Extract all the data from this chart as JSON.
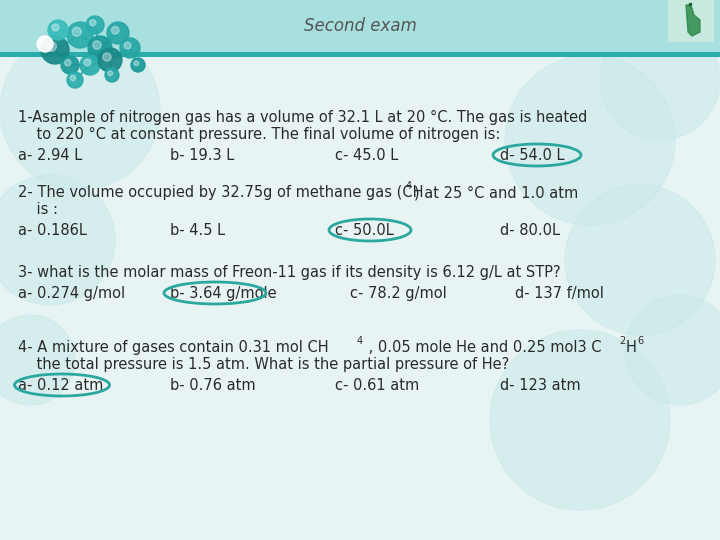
{
  "title": "Second exam",
  "header_bg_color": "#a8e0e0",
  "header_stripe_color": "#2aacac",
  "header_text_color": "#555555",
  "body_bg_color": "#e8f4f4",
  "q1_line1": "1-Asample of nitrogen gas has a volume of 32.1 L at 20 °C. The gas is heated",
  "q1_line2": "    to 220 °C at constant pressure. The final volume of nitrogen is:",
  "q1_a": "a- 2.94 L",
  "q1_b": "b- 19.3 L",
  "q1_c": "c- 45.0 L",
  "q1_d": "d- 54.0 L",
  "q2_line1a": "2- The volume occupied by 32.75g of methane gas (CH",
  "q2_line1b": ") at 25 °C and 1.0 atm",
  "q2_line2": "    is :",
  "q2_a": "a- 0.186L",
  "q2_b": "b- 4.5 L",
  "q2_c": "c- 50.0L",
  "q2_d": "d- 80.0L",
  "q3_line1": "3- what is the molar mass of Freon-11 gas if its density is 6.12 g/L at STP?",
  "q3_a": "a- 0.274 g/mol",
  "q3_b": "b- 3.64 g/mole",
  "q3_c": "c- 78.2 g/mol",
  "q3_d": "d- 137 f/mol",
  "q4_line1a": "4- A mixture of gases contain 0.31 mol CH",
  "q4_line1b": " , 0.05 mole He and 0.25 mol3 C",
  "q4_line1c": "H",
  "q4_line2": "    the total pressure is 1.5 atm. What is the partial pressure of He?",
  "q4_a": "a- 0.12 atm",
  "q4_b": "b- 0.76 atm",
  "q4_c": "c- 0.61 atm",
  "q4_d": "d- 123 atm",
  "circle_color": "#2aa8a0",
  "font_color": "#2a2a2a",
  "watermark_color": "#c8e8e8"
}
